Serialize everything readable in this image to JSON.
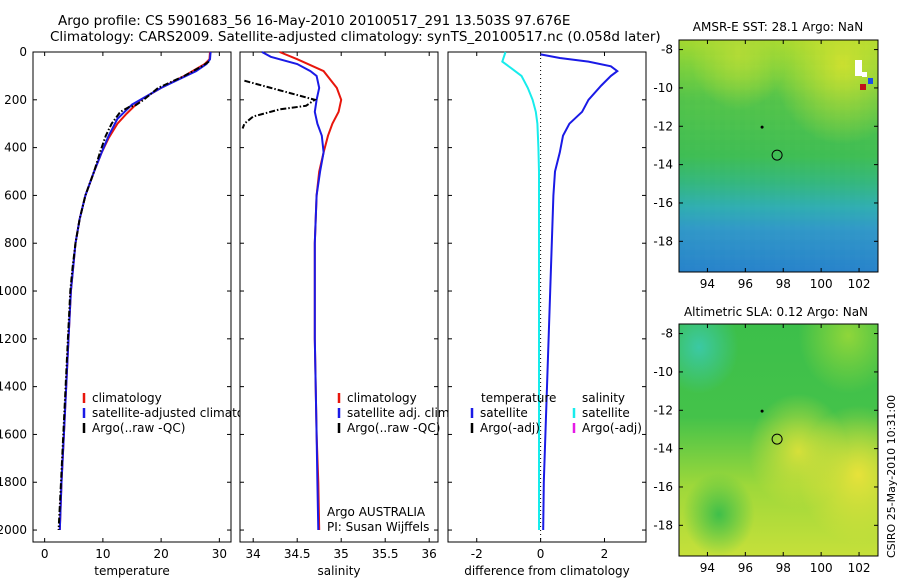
{
  "header": {
    "line1": "Argo profile: CS 5901683_56 16-May-2010 20100517_291 13.503S 97.676E",
    "line2": "Climatology: CARS2009. Satellite-adjusted climatology: synTS_20100517.nc (0.058d later)"
  },
  "side_label": "CSIRO 25-May-2010 10:31:00",
  "chart_data": [
    {
      "type": "line",
      "xlabel": "temperature",
      "ylabel": "",
      "xlim": [
        -2,
        32
      ],
      "ylim": [
        0,
        2050
      ],
      "y_reversed": true,
      "xticks": [
        0,
        10,
        20,
        30
      ],
      "yticks": [
        0,
        200,
        400,
        600,
        800,
        1000,
        1200,
        1400,
        1600,
        1800,
        2000
      ],
      "legend": [
        "climatology",
        "satellite-adjusted climatolo",
        "Argo(..raw -QC)"
      ],
      "legend_colors": [
        "#e8160c",
        "#1a1ae6",
        "#000000"
      ],
      "series": [
        {
          "name": "climatology",
          "color": "#e8160c",
          "style": "solid",
          "points": [
            [
              28.4,
              0
            ],
            [
              28.3,
              30
            ],
            [
              27.5,
              50
            ],
            [
              24,
              100
            ],
            [
              20,
              150
            ],
            [
              16.5,
              200
            ],
            [
              14,
              260
            ],
            [
              12.5,
              300
            ],
            [
              11,
              360
            ],
            [
              9.8,
              420
            ],
            [
              8.5,
              500
            ],
            [
              7,
              600
            ],
            [
              6,
              700
            ],
            [
              5.3,
              800
            ],
            [
              4.9,
              900
            ],
            [
              4.5,
              1000
            ],
            [
              4.1,
              1200
            ],
            [
              3.7,
              1400
            ],
            [
              3.3,
              1600
            ],
            [
              2.9,
              1800
            ],
            [
              2.6,
              2000
            ]
          ]
        },
        {
          "name": "satellite-adjusted climatology",
          "color": "#1a1ae6",
          "style": "solid",
          "points": [
            [
              28.5,
              0
            ],
            [
              28.4,
              30
            ],
            [
              27.8,
              50
            ],
            [
              26,
              80
            ],
            [
              20,
              150
            ],
            [
              15,
              220
            ],
            [
              12.5,
              280
            ],
            [
              11,
              350
            ],
            [
              9.8,
              420
            ],
            [
              8.5,
              500
            ],
            [
              7,
              600
            ],
            [
              6,
              700
            ],
            [
              5.3,
              800
            ],
            [
              4.9,
              900
            ],
            [
              4.5,
              1000
            ],
            [
              4.1,
              1200
            ],
            [
              3.7,
              1400
            ],
            [
              3.3,
              1600
            ],
            [
              2.9,
              1800
            ],
            [
              2.6,
              2000
            ]
          ]
        },
        {
          "name": "Argo(..raw -QC)",
          "color": "#000000",
          "style": "dashdot",
          "points": [
            [
              28.2,
              40
            ],
            [
              27,
              60
            ],
            [
              24,
              100
            ],
            [
              19.5,
              150
            ],
            [
              17,
              200
            ],
            [
              15.5,
              225
            ],
            [
              14.5,
              230
            ],
            [
              13,
              250
            ],
            [
              11.5,
              300
            ],
            [
              10.5,
              350
            ],
            [
              9.5,
              420
            ],
            [
              8.5,
              500
            ],
            [
              7,
              600
            ],
            [
              6,
              700
            ],
            [
              5.3,
              800
            ],
            [
              4.8,
              900
            ],
            [
              4.4,
              1000
            ],
            [
              4,
              1200
            ],
            [
              3.6,
              1400
            ],
            [
              3.2,
              1600
            ],
            [
              2.8,
              1800
            ],
            [
              2.4,
              2000
            ]
          ]
        }
      ]
    },
    {
      "type": "line",
      "xlabel": "salinity",
      "xlim": [
        33.85,
        36.1
      ],
      "ylim": [
        0,
        2050
      ],
      "y_reversed": true,
      "xticks": [
        34,
        34.5,
        35,
        35.5,
        36
      ],
      "legend": [
        "climatology",
        "satellite adj. clim.",
        "Argo(..raw -QC)"
      ],
      "legend_colors": [
        "#e8160c",
        "#1a1ae6",
        "#000000"
      ],
      "annotation": [
        "Argo AUSTRALIA",
        "PI: Susan Wijffels"
      ],
      "series": [
        {
          "name": "climatology",
          "color": "#e8160c",
          "style": "solid",
          "points": [
            [
              34.3,
              0
            ],
            [
              34.5,
              30
            ],
            [
              34.8,
              80
            ],
            [
              34.95,
              150
            ],
            [
              35.0,
              200
            ],
            [
              34.97,
              250
            ],
            [
              34.9,
              300
            ],
            [
              34.85,
              350
            ],
            [
              34.8,
              420
            ],
            [
              34.75,
              500
            ],
            [
              34.72,
              600
            ],
            [
              34.7,
              800
            ],
            [
              34.7,
              1000
            ],
            [
              34.7,
              1200
            ],
            [
              34.71,
              1400
            ],
            [
              34.72,
              1600
            ],
            [
              34.74,
              1800
            ],
            [
              34.75,
              2000
            ]
          ]
        },
        {
          "name": "satellite adj. clim.",
          "color": "#1a1ae6",
          "style": "solid",
          "points": [
            [
              34.1,
              0
            ],
            [
              34.2,
              20
            ],
            [
              34.5,
              50
            ],
            [
              34.65,
              80
            ],
            [
              34.72,
              100
            ],
            [
              34.75,
              150
            ],
            [
              34.72,
              200
            ],
            [
              34.7,
              250
            ],
            [
              34.73,
              300
            ],
            [
              34.78,
              350
            ],
            [
              34.8,
              420
            ],
            [
              34.76,
              500
            ],
            [
              34.72,
              600
            ],
            [
              34.7,
              800
            ],
            [
              34.7,
              1000
            ],
            [
              34.7,
              1200
            ],
            [
              34.71,
              1400
            ],
            [
              34.72,
              1600
            ],
            [
              34.73,
              1800
            ],
            [
              34.74,
              2000
            ]
          ]
        },
        {
          "name": "Argo(..raw -QC)",
          "color": "#000000",
          "style": "dashdot",
          "points": [
            [
              33.9,
              120
            ],
            [
              34.2,
              150
            ],
            [
              34.5,
              180
            ],
            [
              34.65,
              195
            ],
            [
              34.7,
              200
            ],
            [
              34.6,
              225
            ],
            [
              34.3,
              240
            ],
            [
              34.0,
              270
            ],
            [
              33.9,
              300
            ],
            [
              33.88,
              320
            ]
          ]
        }
      ]
    },
    {
      "type": "line",
      "xlabel": "difference from climatology",
      "xlim": [
        -2.9,
        3.3
      ],
      "ylim": [
        0,
        2050
      ],
      "y_reversed": true,
      "xticks": [
        -2,
        0,
        2
      ],
      "legend_headers": [
        "temperature",
        "salinity"
      ],
      "legend": [
        "satellite",
        "Argo(-adj)",
        "satellite",
        "Argo(-adj)"
      ],
      "legend_colors": [
        "#1a1ae6",
        "#000000",
        "#18ecec",
        "#e61ae6"
      ],
      "series": [
        {
          "name": "temperature satellite",
          "color": "#1a1ae6",
          "style": "solid",
          "points": [
            [
              0,
              10
            ],
            [
              0.6,
              25
            ],
            [
              1.5,
              40
            ],
            [
              2.2,
              60
            ],
            [
              2.4,
              80
            ],
            [
              2.2,
              100
            ],
            [
              1.9,
              140
            ],
            [
              1.5,
              200
            ],
            [
              1.3,
              250
            ],
            [
              0.9,
              300
            ],
            [
              0.7,
              350
            ],
            [
              0.6,
              420
            ],
            [
              0.45,
              500
            ],
            [
              0.4,
              600
            ],
            [
              0.35,
              800
            ],
            [
              0.3,
              1000
            ],
            [
              0.25,
              1200
            ],
            [
              0.2,
              1400
            ],
            [
              0.15,
              1600
            ],
            [
              0.1,
              1800
            ],
            [
              0.08,
              2000
            ]
          ]
        },
        {
          "name": "salinity satellite",
          "color": "#18ecec",
          "style": "solid",
          "points": [
            [
              -1.1,
              0
            ],
            [
              -1.2,
              40
            ],
            [
              -0.9,
              70
            ],
            [
              -0.6,
              100
            ],
            [
              -0.4,
              150
            ],
            [
              -0.25,
              200
            ],
            [
              -0.15,
              250
            ],
            [
              -0.1,
              300
            ],
            [
              -0.07,
              400
            ],
            [
              -0.05,
              500
            ],
            [
              -0.05,
              700
            ],
            [
              -0.05,
              1000
            ],
            [
              -0.05,
              1300
            ],
            [
              -0.05,
              1600
            ],
            [
              -0.05,
              1800
            ],
            [
              -0.05,
              2000
            ]
          ]
        }
      ]
    },
    {
      "type": "heatmap",
      "title": "AMSR-E SST: 28.1 Argo: NaN",
      "xlim": [
        92.5,
        103
      ],
      "ylim": [
        -19.6,
        -7.5
      ],
      "xticks": [
        94,
        96,
        98,
        100,
        102
      ],
      "yticks": [
        -8,
        -10,
        -12,
        -14,
        -16,
        -18
      ],
      "argo_position": [
        97.676,
        -13.503
      ]
    },
    {
      "type": "heatmap",
      "title": "Altimetric SLA: 0.12 Argo: NaN",
      "xlim": [
        92.5,
        103
      ],
      "ylim": [
        -19.6,
        -7.5
      ],
      "xticks": [
        94,
        96,
        98,
        100,
        102
      ],
      "yticks": [
        -8,
        -10,
        -12,
        -14,
        -16,
        -18
      ],
      "argo_position": [
        97.676,
        -13.503
      ]
    }
  ]
}
